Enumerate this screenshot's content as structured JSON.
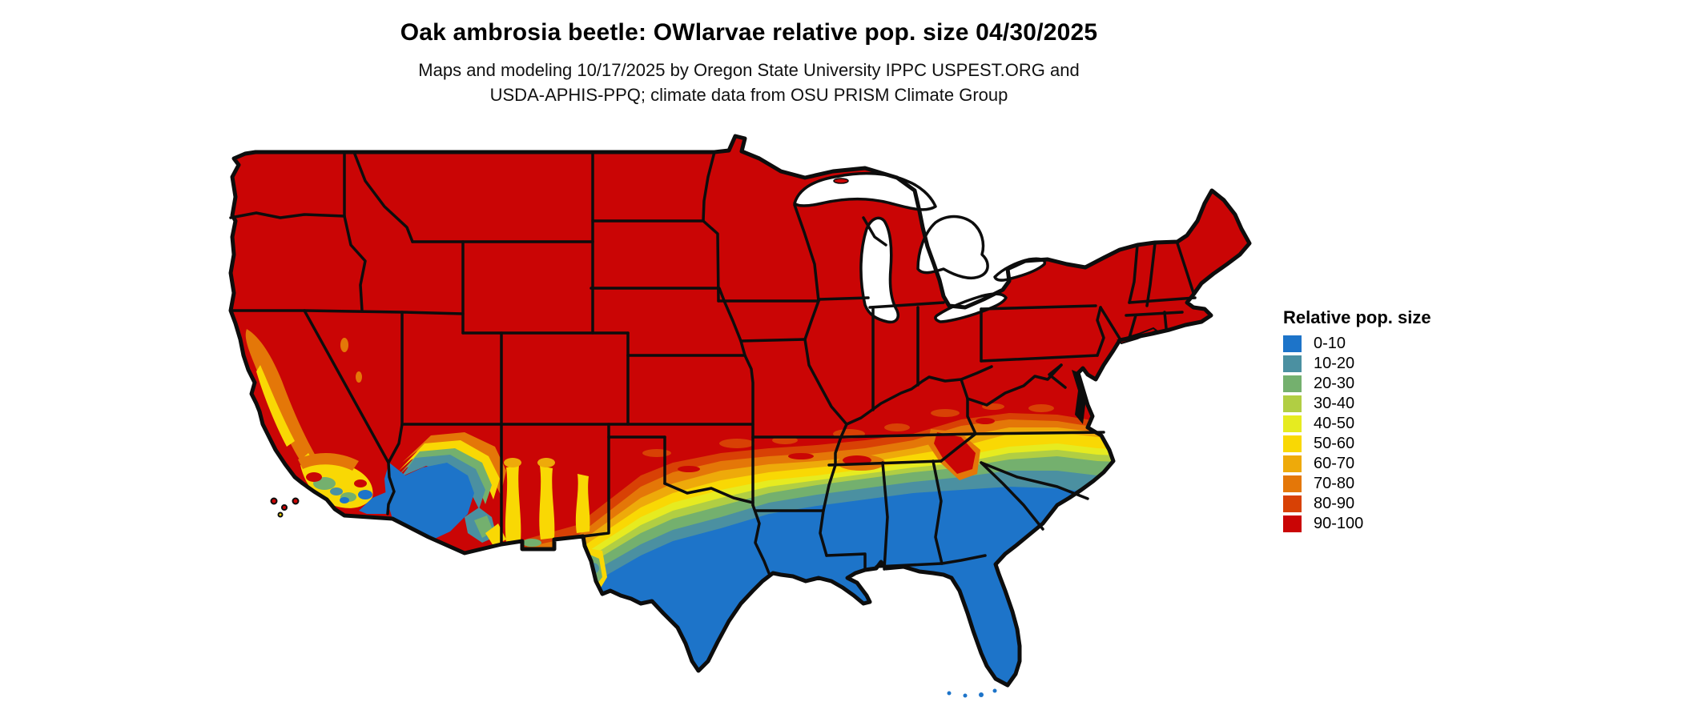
{
  "title": "Oak ambrosia beetle: OWlarvae relative pop. size 04/30/2025",
  "subtitle_line1": "Maps and modeling 10/17/2025 by Oregon State University IPPC USPEST.ORG and",
  "subtitle_line2": "USDA-APHIS-PPQ; climate data from OSU PRISM Climate Group",
  "legend": {
    "title": "Relative pop. size",
    "items": [
      {
        "label": "0-10",
        "color": "#1d74c9"
      },
      {
        "label": "10-20",
        "color": "#4b90a1"
      },
      {
        "label": "20-30",
        "color": "#74b06e"
      },
      {
        "label": "30-40",
        "color": "#b1ce43"
      },
      {
        "label": "40-50",
        "color": "#e6eb20"
      },
      {
        "label": "50-60",
        "color": "#f9d804"
      },
      {
        "label": "60-70",
        "color": "#eeaa0a"
      },
      {
        "label": "70-80",
        "color": "#e47708"
      },
      {
        "label": "80-90",
        "color": "#d84105"
      },
      {
        "label": "90-100",
        "color": "#ca0505"
      }
    ]
  },
  "map": {
    "region": "Contiguous United States choropleth of relative population size",
    "base_class_label": "90-100",
    "base_color": "#ca0505",
    "border_color": "#0d0d0d",
    "water_color": "#ffffff"
  },
  "chart_data": {
    "type": "heatmap",
    "title": "Oak ambrosia beetle: OWlarvae relative pop. size 04/30/2025",
    "legend_title": "Relative pop. size",
    "classes": [
      "0-10",
      "10-20",
      "20-30",
      "30-40",
      "40-50",
      "50-60",
      "60-70",
      "70-80",
      "80-90",
      "90-100"
    ],
    "class_colors": [
      "#1d74c9",
      "#4b90a1",
      "#74b06e",
      "#b1ce43",
      "#e6eb20",
      "#f9d804",
      "#eeaa0a",
      "#e47708",
      "#d84105",
      "#ca0505"
    ],
    "spatial_pattern": "Northern and central US (most states north of ~36N) in 90-100 class; banded gradient southward through orange, yellow, green, teal; 0-10 blue across southern Texas, Gulf Coast, Florida, southern Louisiana-Mississippi-Alabama-Georgia, low deserts of southwest Arizona and southeast California; mountain-driven mottling of oranges, yellows, greens and blues in California, Nevada fringe, Arizona, New Mexico; red tongue extending south along the Appalachians"
  }
}
